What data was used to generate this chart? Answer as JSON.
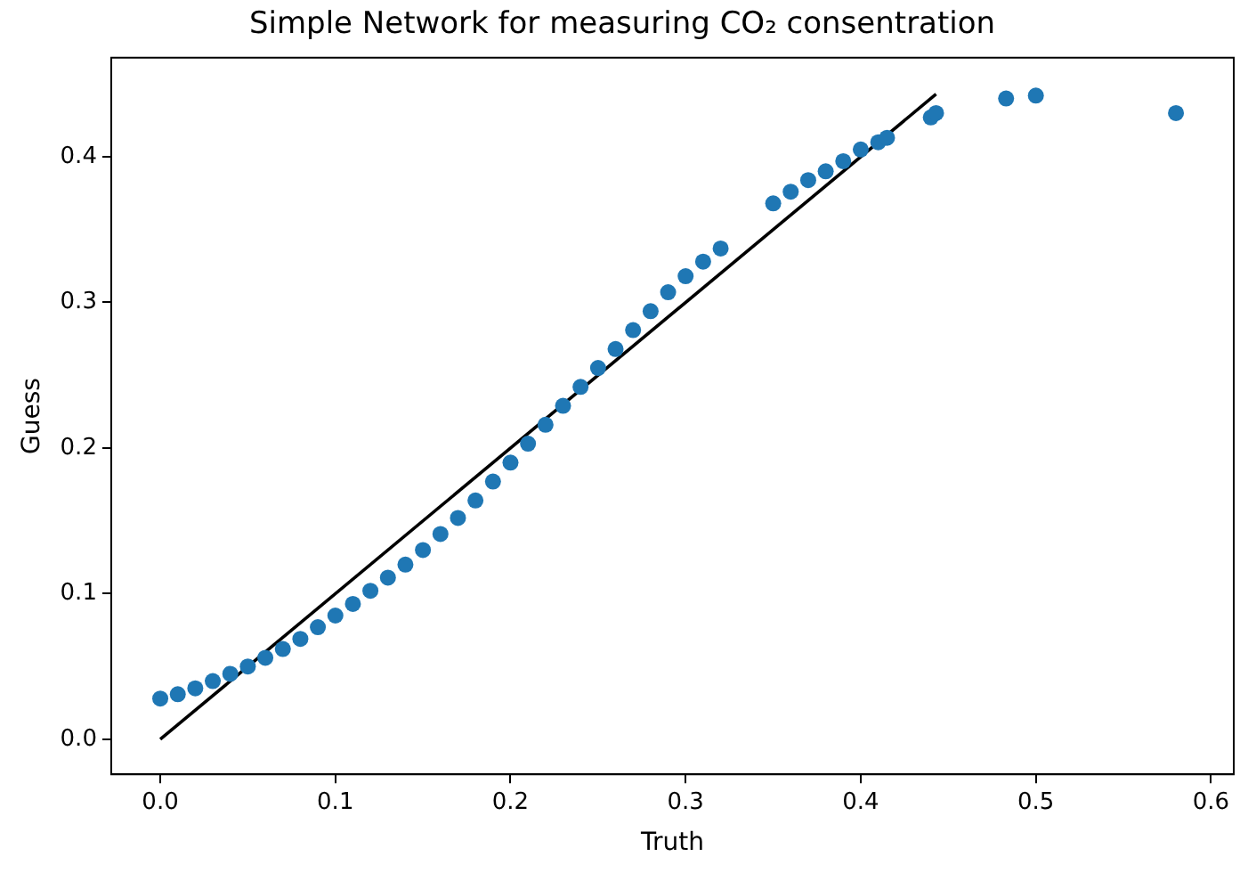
{
  "chart_data": {
    "type": "scatter",
    "title": "Simple Network for measuring CO₂ consentration",
    "xlabel": "Truth",
    "ylabel": "Guess",
    "xlim": [
      -0.028,
      0.613
    ],
    "ylim": [
      -0.024,
      0.468
    ],
    "xticks": [
      {
        "value": 0,
        "label": "0.0"
      },
      0.1,
      0.2,
      0.3,
      0.4,
      0.5,
      0.6
    ],
    "yticks": [
      {
        "value": 0,
        "label": "0.0"
      },
      0.1,
      0.2,
      0.3,
      0.4
    ],
    "grid": false,
    "legend": false,
    "marker": "circle",
    "series": [
      {
        "type": "scatter",
        "color": "#1f77b4",
        "x": [
          0,
          0.01,
          0.02,
          0.03,
          0.04,
          0.05,
          0.06,
          0.07,
          0.08,
          0.09,
          0.1,
          0.11,
          0.12,
          0.13,
          0.14,
          0.15,
          0.16,
          0.17,
          0.18,
          0.19,
          0.2,
          0.21,
          0.22,
          0.23,
          0.24,
          0.25,
          0.26,
          0.27,
          0.28,
          0.29,
          0.3,
          0.31,
          0.32,
          0.35,
          0.36,
          0.37,
          0.38,
          0.39,
          0.4,
          0.41,
          0.415,
          0.44,
          0.443,
          0.483,
          0.5,
          0.58
        ],
        "values": [
          0.028,
          0.031,
          0.035,
          0.04,
          0.045,
          0.05,
          0.056,
          0.062,
          0.069,
          0.077,
          0.085,
          0.093,
          0.102,
          0.111,
          0.12,
          0.13,
          0.141,
          0.152,
          0.164,
          0.177,
          0.19,
          0.203,
          0.216,
          0.229,
          0.242,
          0.255,
          0.268,
          0.281,
          0.294,
          0.307,
          0.318,
          0.328,
          0.337,
          0.368,
          0.376,
          0.384,
          0.39,
          0.397,
          0.405,
          0.41,
          0.413,
          0.427,
          0.43,
          0.44,
          0.442,
          0.43
        ]
      },
      {
        "type": "line",
        "color": "#000000",
        "marker": "none",
        "line_style": "solid",
        "x": [
          0,
          0.443
        ],
        "values": [
          0,
          0.443
        ]
      }
    ]
  }
}
